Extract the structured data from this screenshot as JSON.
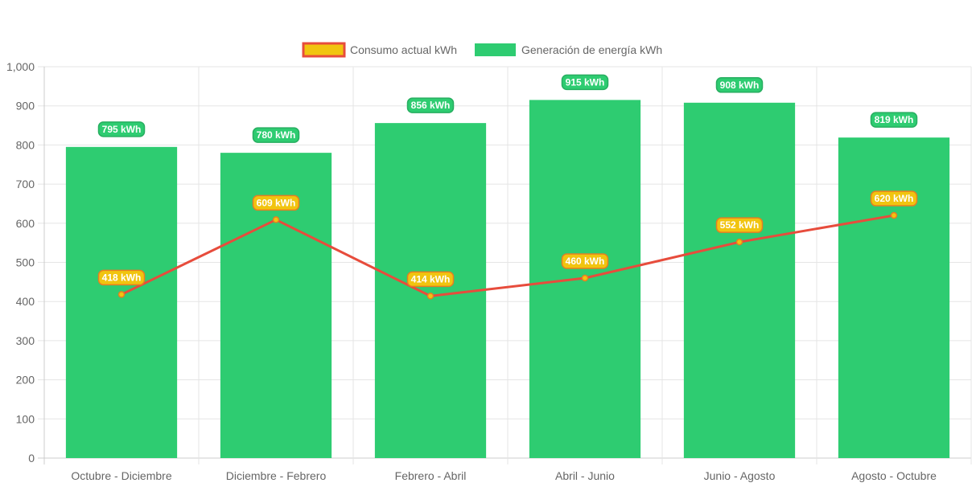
{
  "chart_data": {
    "type": "bar",
    "categories": [
      "Octubre - Diciembre",
      "Diciembre - Febrero",
      "Febrero - Abril",
      "Abril - Junio",
      "Junio - Agosto",
      "Agosto - Octubre"
    ],
    "series": [
      {
        "name": "Consumo actual kWh",
        "type": "line",
        "values": [
          418,
          609,
          414,
          460,
          552,
          620
        ],
        "labels": [
          "418 kWh",
          "609 kWh",
          "414 kWh",
          "460 kWh",
          "552 kWh",
          "620 kWh"
        ],
        "line_color": "#e74c3c",
        "point_color": "#f1c40f"
      },
      {
        "name": "Generación de energía kWh",
        "type": "bar",
        "values": [
          795,
          780,
          856,
          915,
          908,
          819
        ],
        "labels": [
          "795 kWh",
          "780 kWh",
          "856 kWh",
          "915 kWh",
          "908 kWh",
          "819 kWh"
        ],
        "color": "#2ecc71"
      }
    ],
    "yticks": [
      "0",
      "100",
      "200",
      "300",
      "400",
      "500",
      "600",
      "700",
      "800",
      "900",
      "1,000"
    ],
    "ylim": [
      0,
      1000
    ],
    "grid": true,
    "legend_position": "top-center"
  }
}
